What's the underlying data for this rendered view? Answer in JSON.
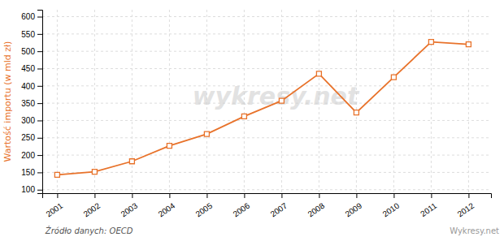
{
  "chart_data": {
    "type": "line",
    "x": [
      2001,
      2002,
      2003,
      2004,
      2005,
      2006,
      2007,
      2008,
      2009,
      2010,
      2011,
      2012
    ],
    "values": [
      143,
      152,
      182,
      227,
      261,
      312,
      357,
      435,
      323,
      425,
      527,
      520
    ],
    "color": "#E8722A",
    "marker": "square",
    "y_label": "Wartość importu (w mld zł)",
    "xlim": [
      2000.6,
      2012.6
    ],
    "xticks": [
      2001,
      2002,
      2003,
      2004,
      2005,
      2006,
      2007,
      2008,
      2009,
      2010,
      2011,
      2012
    ],
    "ylim": [
      90,
      620
    ],
    "yticks": [
      100,
      150,
      200,
      250,
      300,
      350,
      400,
      450,
      500,
      550,
      600
    ],
    "grid": true,
    "annotations": [
      "wykresy.net",
      "Źródło danych:  OECD",
      "Wykresy.net"
    ]
  }
}
